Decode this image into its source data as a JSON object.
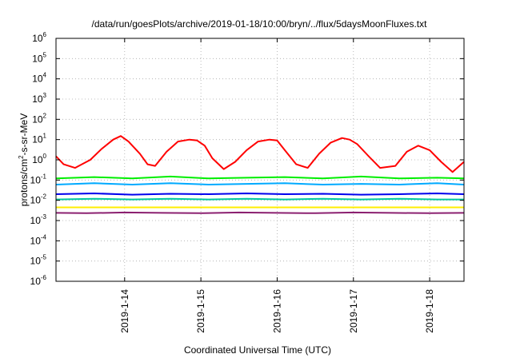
{
  "chart_data": {
    "type": "line",
    "title": "/data/run/goesPlots/archive/2019-01-18/10:00/bryn/../flux/5daysMoonFluxes.txt",
    "xlabel": "Coordinated Universal Time (UTC)",
    "ylabel": {
      "base": "protons/cm",
      "sup": "2",
      "tail": "-s-sr-MeV"
    },
    "y_scale": "log",
    "ylim": [
      1e-06,
      1000000.0
    ],
    "xlim": [
      13.1,
      18.45
    ],
    "grid": true,
    "legend": "none",
    "y_ticks": [
      {
        "v": -6,
        "label": "10",
        "exp": "-6"
      },
      {
        "v": -5,
        "label": "10",
        "exp": "-5"
      },
      {
        "v": -4,
        "label": "10",
        "exp": "-4"
      },
      {
        "v": -3,
        "label": "10",
        "exp": "-3"
      },
      {
        "v": -2,
        "label": "10",
        "exp": "-2"
      },
      {
        "v": -1,
        "label": "10",
        "exp": "-1"
      },
      {
        "v": 0,
        "label": "10",
        "exp": "0"
      },
      {
        "v": 1,
        "label": "10",
        "exp": "1"
      },
      {
        "v": 2,
        "label": "10",
        "exp": "2"
      },
      {
        "v": 3,
        "label": "10",
        "exp": "3"
      },
      {
        "v": 4,
        "label": "10",
        "exp": "4"
      },
      {
        "v": 5,
        "label": "10",
        "exp": "5"
      },
      {
        "v": 6,
        "label": "10",
        "exp": "6"
      }
    ],
    "x_ticks": [
      {
        "v": 14,
        "label": "2019-1-14"
      },
      {
        "v": 15,
        "label": "2019-1-15"
      },
      {
        "v": 16,
        "label": "2019-1-16"
      },
      {
        "v": 17,
        "label": "2019-1-17"
      },
      {
        "v": 18,
        "label": "2019-1-18"
      }
    ],
    "series": [
      {
        "color": "#ff0000",
        "width": 2,
        "x": [
          13.1,
          13.2,
          13.35,
          13.55,
          13.7,
          13.85,
          13.95,
          14.05,
          14.2,
          14.3,
          14.4,
          14.55,
          14.7,
          14.85,
          14.95,
          15.05,
          15.15,
          15.3,
          15.45,
          15.6,
          15.75,
          15.9,
          16.0,
          16.1,
          16.25,
          16.4,
          16.55,
          16.7,
          16.85,
          16.95,
          17.05,
          17.2,
          17.35,
          17.55,
          17.7,
          17.85,
          18.0,
          18.15,
          18.3,
          18.45
        ],
        "y": [
          1.5,
          0.6,
          0.4,
          1.0,
          3.5,
          10,
          15,
          8,
          2.0,
          0.6,
          0.5,
          2.5,
          8,
          10,
          9,
          5,
          1.2,
          0.35,
          0.8,
          3,
          8,
          10,
          9,
          3,
          0.6,
          0.4,
          2,
          7,
          12,
          10,
          6,
          1.5,
          0.4,
          0.5,
          2.5,
          5,
          3,
          0.8,
          0.25,
          0.8
        ]
      },
      {
        "color": "#00ee00",
        "width": 2,
        "x": [
          13.1,
          13.6,
          14.1,
          14.6,
          15.1,
          15.6,
          16.1,
          16.6,
          17.1,
          17.6,
          18.1,
          18.45
        ],
        "y": [
          0.12,
          0.14,
          0.12,
          0.15,
          0.12,
          0.13,
          0.14,
          0.12,
          0.15,
          0.12,
          0.13,
          0.12
        ]
      },
      {
        "color": "#00aaff",
        "width": 2,
        "x": [
          13.1,
          13.6,
          14.1,
          14.6,
          15.1,
          15.6,
          16.1,
          16.6,
          17.1,
          17.6,
          18.1,
          18.45
        ],
        "y": [
          0.06,
          0.07,
          0.06,
          0.07,
          0.06,
          0.065,
          0.07,
          0.06,
          0.065,
          0.06,
          0.07,
          0.06
        ]
      },
      {
        "color": "#0000ee",
        "width": 2,
        "x": [
          13.1,
          13.6,
          14.1,
          14.6,
          15.1,
          15.6,
          16.1,
          16.6,
          17.1,
          17.6,
          18.1,
          18.45
        ],
        "y": [
          0.02,
          0.022,
          0.019,
          0.021,
          0.02,
          0.022,
          0.02,
          0.021,
          0.019,
          0.02,
          0.022,
          0.02
        ]
      },
      {
        "color": "#00c8a0",
        "width": 2,
        "x": [
          13.1,
          13.6,
          14.1,
          14.6,
          15.1,
          15.6,
          16.1,
          16.6,
          17.1,
          17.6,
          18.1,
          18.45
        ],
        "y": [
          0.011,
          0.012,
          0.011,
          0.012,
          0.011,
          0.012,
          0.011,
          0.012,
          0.011,
          0.012,
          0.011,
          0.011
        ]
      },
      {
        "color": "#ffee00",
        "width": 2,
        "x": [
          13.1,
          14.0,
          15.0,
          16.0,
          17.0,
          18.0,
          18.45
        ],
        "y": [
          0.0045,
          0.0045,
          0.0045,
          0.0045,
          0.0045,
          0.0045,
          0.0045
        ]
      },
      {
        "color": "#8b2070",
        "width": 2,
        "x": [
          13.1,
          13.5,
          14.0,
          14.5,
          15.0,
          15.5,
          16.0,
          16.5,
          17.0,
          17.5,
          18.0,
          18.45
        ],
        "y": [
          0.0024,
          0.0023,
          0.0025,
          0.0024,
          0.0023,
          0.0025,
          0.0024,
          0.0023,
          0.0025,
          0.0024,
          0.0023,
          0.0024
        ]
      }
    ]
  }
}
